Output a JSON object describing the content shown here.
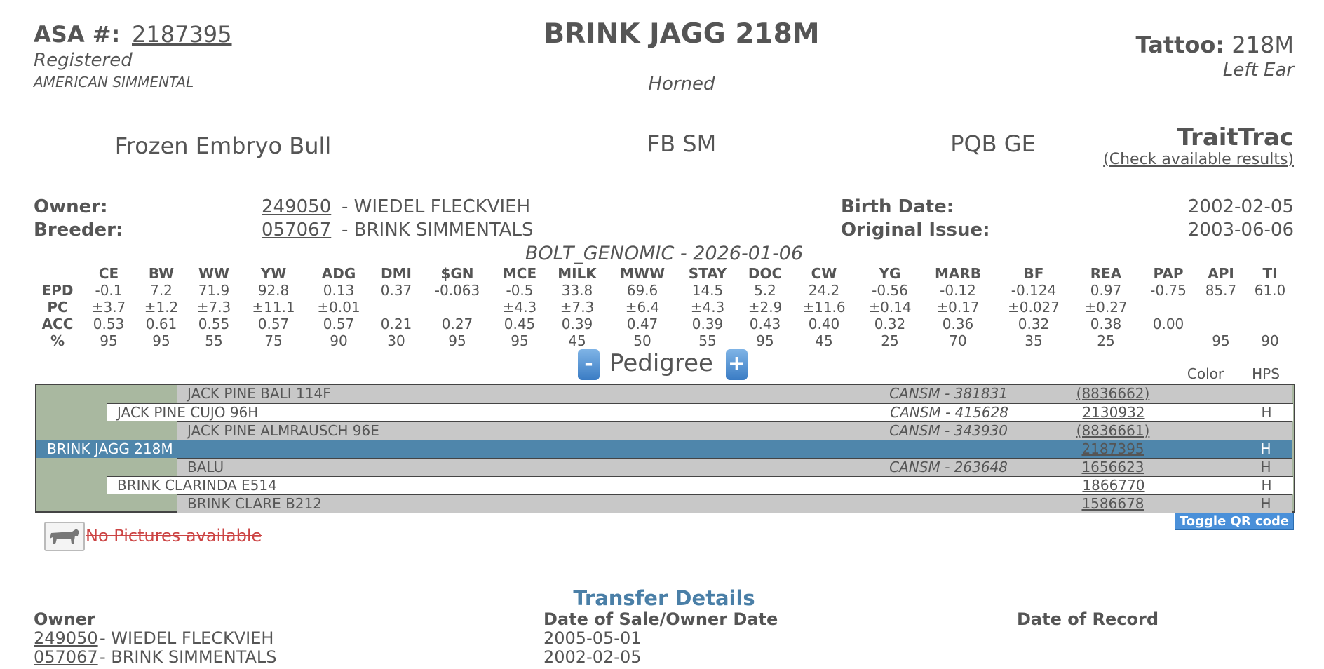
{
  "header": {
    "asa_label": "ASA #:",
    "asa_number": "2187395",
    "status": "Registered",
    "breed": "AMERICAN SIMMENTAL",
    "name": "BRINK JAGG 218M",
    "horned": "Horned",
    "tattoo_label": "Tattoo:",
    "tattoo": "218M",
    "tattoo_location": "Left Ear"
  },
  "summary": {
    "type": "Frozen Embryo Bull",
    "breed_code": "FB SM",
    "flags": "PQB GE",
    "traittrac": "TraitTrac",
    "traittrac_link": "(Check available results)"
  },
  "details": {
    "owner_label": "Owner:",
    "owner_id": "249050",
    "owner_name": "- WIEDEL FLECKVIEH",
    "breeder_label": "Breeder:",
    "breeder_id": "057067",
    "breeder_name": "- BRINK SIMMENTALS",
    "birth_label": "Birth Date:",
    "birth_date": "2002-02-05",
    "issue_label": "Original Issue:",
    "issue_date": "2003-06-06"
  },
  "epd": {
    "title": "BOLT_GENOMIC - 2026-01-06",
    "columns": [
      "CE",
      "BW",
      "WW",
      "YW",
      "ADG",
      "DMI",
      "$GN",
      "MCE",
      "MILK",
      "MWW",
      "STAY",
      "DOC",
      "CW",
      "YG",
      "MARB",
      "BF",
      "REA",
      "PAP",
      "API",
      "TI"
    ],
    "rows": [
      {
        "label": "EPD",
        "cells": [
          "-0.1",
          "7.2",
          "71.9",
          "92.8",
          "0.13",
          "0.37",
          "-0.063",
          "-0.5",
          "33.8",
          "69.6",
          "14.5",
          "5.2",
          "24.2",
          "-0.56",
          "-0.12",
          "-0.124",
          "0.97",
          "-0.75",
          "85.7",
          "61.0"
        ]
      },
      {
        "label": "PC",
        "cells": [
          "±3.7",
          "±1.2",
          "±7.3",
          "±11.1",
          "±0.01",
          null,
          null,
          "±4.3",
          "±7.3",
          "±6.4",
          "±4.3",
          "±2.9",
          "±11.6",
          "±0.14",
          "±0.17",
          "±0.027",
          "±0.27",
          null,
          null,
          null
        ]
      },
      {
        "label": "ACC",
        "cells": [
          "0.53",
          "0.61",
          "0.55",
          "0.57",
          "0.57",
          "0.21",
          "0.27",
          "0.45",
          "0.39",
          "0.47",
          "0.39",
          "0.43",
          "0.40",
          "0.32",
          "0.36",
          "0.32",
          "0.38",
          "0.00",
          null,
          null
        ]
      },
      {
        "label": "%",
        "cells": [
          "95",
          "95",
          "55",
          "75",
          "90",
          "30",
          "95",
          "95",
          "45",
          "50",
          "55",
          "95",
          "45",
          "25",
          "70",
          "35",
          "25",
          null,
          "95",
          "90"
        ]
      }
    ]
  },
  "pedigree": {
    "collapse": "-",
    "title": "Pedigree",
    "expand": "+",
    "color_header": "Color",
    "hps_header": "HPS",
    "rows": [
      {
        "name": "JACK PINE BALI 114F",
        "cansm": "CANSM - 381831",
        "reg": "(8836662)",
        "hps": null
      },
      {
        "name": "JACK PINE CUJO 96H",
        "cansm": "CANSM - 415628",
        "reg": "2130932",
        "hps": "H"
      },
      {
        "name": "JACK PINE ALMRAUSCH 96E",
        "cansm": "CANSM - 343930",
        "reg": "(8836661)",
        "hps": null
      },
      {
        "name": "BRINK JAGG 218M",
        "cansm": null,
        "reg": "2187395",
        "hps": "H"
      },
      {
        "name": "BALU",
        "cansm": "CANSM - 263648",
        "reg": "1656623",
        "hps": "H"
      },
      {
        "name": "BRINK CLARINDA E514",
        "cansm": null,
        "reg": "1866770",
        "hps": "H"
      },
      {
        "name": "BRINK CLARE B212",
        "cansm": null,
        "reg": "1586678",
        "hps": "H"
      }
    ],
    "qr_button": "Toggle QR code",
    "no_pictures": "No Pictures available"
  },
  "transfer": {
    "title": "Transfer Details",
    "headers": [
      "Owner",
      "Date of Sale/Owner Date",
      "Date of Record"
    ],
    "rows": [
      {
        "id": "249050",
        "name": "- WIEDEL FLECKVIEH",
        "date": "2005-05-01"
      },
      {
        "id": "057067",
        "name": "- BRINK SIMMENTALS",
        "date": "2002-02-05"
      }
    ]
  }
}
